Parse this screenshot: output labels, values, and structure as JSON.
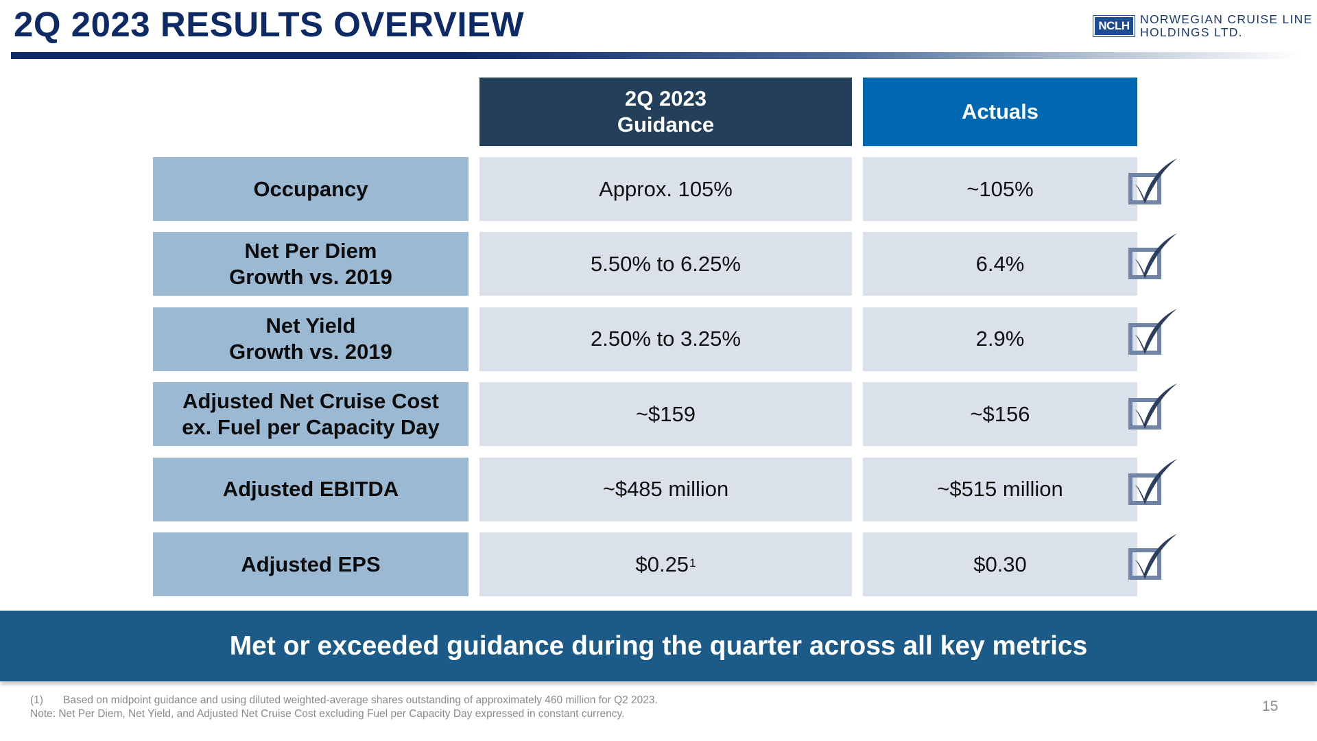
{
  "title": "2Q 2023 RESULTS OVERVIEW",
  "logo": {
    "abbr": "NCLH",
    "line1": "NORWEGIAN CRUISE LINE",
    "line2": "HOLDINGS LTD."
  },
  "table": {
    "headers": {
      "guidance": "2Q 2023\nGuidance",
      "actuals": "Actuals"
    },
    "rows": [
      {
        "label": "Occupancy",
        "guidance": "Approx. 105%",
        "guidance_sup": "",
        "actual": "~105%",
        "met": true
      },
      {
        "label": "Net Per Diem\nGrowth vs. 2019",
        "guidance": "5.50% to 6.25%",
        "guidance_sup": "",
        "actual": "6.4%",
        "met": true
      },
      {
        "label": "Net Yield\nGrowth vs. 2019",
        "guidance": "2.50% to 3.25%",
        "guidance_sup": "",
        "actual": "2.9%",
        "met": true
      },
      {
        "label": "Adjusted Net Cruise Cost\nex. Fuel per Capacity Day",
        "guidance": "~$159",
        "guidance_sup": "",
        "actual": "~$156",
        "met": true
      },
      {
        "label": "Adjusted EBITDA",
        "guidance": "~$485 million",
        "guidance_sup": "",
        "actual": "~$515 million",
        "met": true
      },
      {
        "label": "Adjusted EPS",
        "guidance": "$0.25",
        "guidance_sup": "1",
        "actual": "$0.30",
        "met": true
      }
    ]
  },
  "banner": "Met or exceeded guidance during the quarter across all key metrics",
  "footnotes": {
    "fn1_marker": "(1)",
    "fn1_text": "Based on midpoint guidance and using diluted weighted-average shares outstanding of approximately 460 million for Q2 2023.",
    "note": "Note: Net Per Diem, Net Yield, and Adjusted Net Cruise Cost excluding Fuel per Capacity Day expressed in constant currency."
  },
  "page_number": "15",
  "colors": {
    "title": "#0e2a66",
    "guidance_header": "#233f59",
    "actuals_header": "#0068b0",
    "label_cell": "#9cb9d4",
    "value_cell": "#dbe1eb",
    "banner": "#1c5a87",
    "checkmark": "#2c3e5c",
    "checkbox": "#6f84a6"
  }
}
